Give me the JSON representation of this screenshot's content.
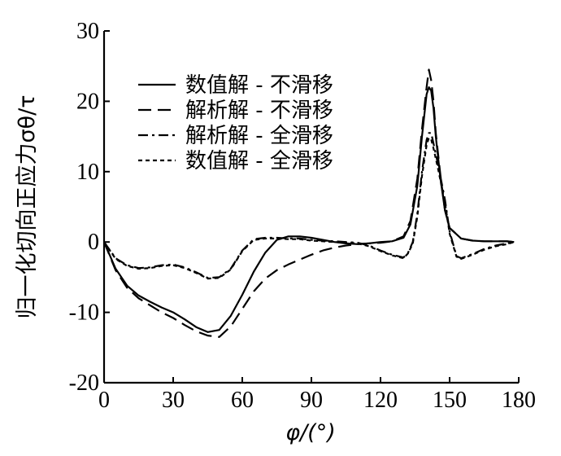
{
  "chart_data": {
    "type": "line",
    "xlabel": "φ/(°)",
    "ylabel": "归一化切向正应力σθ/τ",
    "xlim": [
      0,
      180
    ],
    "ylim": [
      -20,
      30
    ],
    "xticks": [
      "0",
      "30",
      "60",
      "90",
      "120",
      "150",
      "180"
    ],
    "yticks": [
      "-20",
      "-10",
      "0",
      "10",
      "20",
      "30"
    ],
    "grid": false,
    "legend_position": "top-left",
    "series": [
      {
        "name": "数值解 - 不滑移",
        "style": "solid",
        "x": [
          0,
          5,
          10,
          15,
          20,
          25,
          30,
          35,
          40,
          45,
          50,
          55,
          60,
          65,
          70,
          75,
          80,
          85,
          90,
          95,
          100,
          105,
          110,
          115,
          120,
          125,
          130,
          133,
          136,
          138,
          140,
          141,
          142,
          143,
          144,
          146,
          148,
          150,
          155,
          160,
          165,
          170,
          175,
          178
        ],
        "values": [
          0,
          -3.8,
          -6.2,
          -7.6,
          -8.5,
          -9.3,
          -10,
          -11,
          -12.1,
          -12.8,
          -12.5,
          -10.5,
          -7.5,
          -4.2,
          -1.5,
          0.3,
          0.8,
          0.8,
          0.6,
          0.3,
          0,
          -0.2,
          -0.3,
          -0.2,
          0,
          0.1,
          0.6,
          2.5,
          8,
          15,
          21,
          22,
          21.5,
          19,
          15,
          9,
          4.5,
          2,
          0.5,
          0.2,
          0.1,
          0.1,
          0.1,
          0
        ]
      },
      {
        "name": "解析解 - 不滑移",
        "style": "long-dash",
        "x": [
          0,
          5,
          10,
          15,
          20,
          25,
          30,
          35,
          40,
          45,
          50,
          55,
          60,
          65,
          70,
          75,
          80,
          85,
          90,
          95,
          100,
          105,
          110,
          115,
          120,
          125,
          130,
          133,
          136,
          138,
          140,
          141,
          142,
          143,
          144,
          146,
          148,
          150,
          155,
          160,
          165,
          170,
          175,
          178
        ],
        "values": [
          0,
          -4,
          -6.5,
          -8,
          -9,
          -10,
          -10.8,
          -11.8,
          -12.7,
          -13.3,
          -13.5,
          -12,
          -9.5,
          -7,
          -5.2,
          -4,
          -3.2,
          -2.5,
          -1.8,
          -1.2,
          -0.8,
          -0.5,
          -0.3,
          -0.2,
          -0.1,
          0.1,
          0.8,
          3,
          9,
          16,
          22,
          24.5,
          23,
          20,
          15.5,
          9.5,
          4.5,
          2,
          0.5,
          0.2,
          0.1,
          0.1,
          0.1,
          0
        ]
      },
      {
        "name": "解析解 - 全滑移",
        "style": "dash-dot",
        "x": [
          0,
          5,
          10,
          15,
          20,
          25,
          30,
          35,
          40,
          45,
          50,
          55,
          60,
          65,
          70,
          75,
          80,
          85,
          90,
          95,
          100,
          105,
          110,
          115,
          120,
          125,
          130,
          132,
          134,
          136,
          138,
          140,
          141,
          142,
          143,
          145,
          148,
          150,
          153,
          155,
          160,
          165,
          170,
          175,
          178
        ],
        "values": [
          0,
          -2.3,
          -3.3,
          -3.7,
          -3.6,
          -3.3,
          -3.2,
          -3.6,
          -4.3,
          -5.1,
          -5,
          -3.8,
          -1.2,
          0.4,
          0.6,
          0.6,
          0.5,
          0.5,
          0.3,
          0.2,
          0.1,
          0,
          -0.1,
          -0.5,
          -1.2,
          -1.8,
          -2.2,
          -1.5,
          0,
          4,
          10,
          14.5,
          15.5,
          15.5,
          14,
          11,
          6,
          1.5,
          -2,
          -2.3,
          -1.7,
          -1,
          -0.5,
          -0.2,
          0
        ]
      },
      {
        "name": "数值解 - 全滑移",
        "style": "short-dash",
        "x": [
          0,
          5,
          10,
          15,
          20,
          25,
          30,
          35,
          40,
          45,
          50,
          55,
          60,
          65,
          70,
          75,
          80,
          85,
          90,
          95,
          100,
          105,
          110,
          115,
          120,
          125,
          130,
          132,
          134,
          136,
          138,
          140,
          141,
          142,
          143,
          145,
          148,
          150,
          153,
          155,
          160,
          165,
          170,
          175,
          178
        ],
        "values": [
          0,
          -2.4,
          -3.4,
          -3.8,
          -3.7,
          -3.4,
          -3.3,
          -3.7,
          -4.4,
          -5.2,
          -5.1,
          -3.9,
          -1.3,
          0.3,
          0.5,
          0.5,
          0.4,
          0.4,
          0.2,
          0.1,
          0,
          -0.1,
          -0.2,
          -0.6,
          -1.3,
          -1.9,
          -2.3,
          -1.6,
          -0.2,
          3.6,
          9.4,
          13.8,
          14.8,
          14.6,
          13.3,
          10.4,
          5.6,
          1.2,
          -2.1,
          -2.4,
          -1.8,
          -1.1,
          -0.6,
          -0.3,
          0
        ]
      }
    ]
  }
}
